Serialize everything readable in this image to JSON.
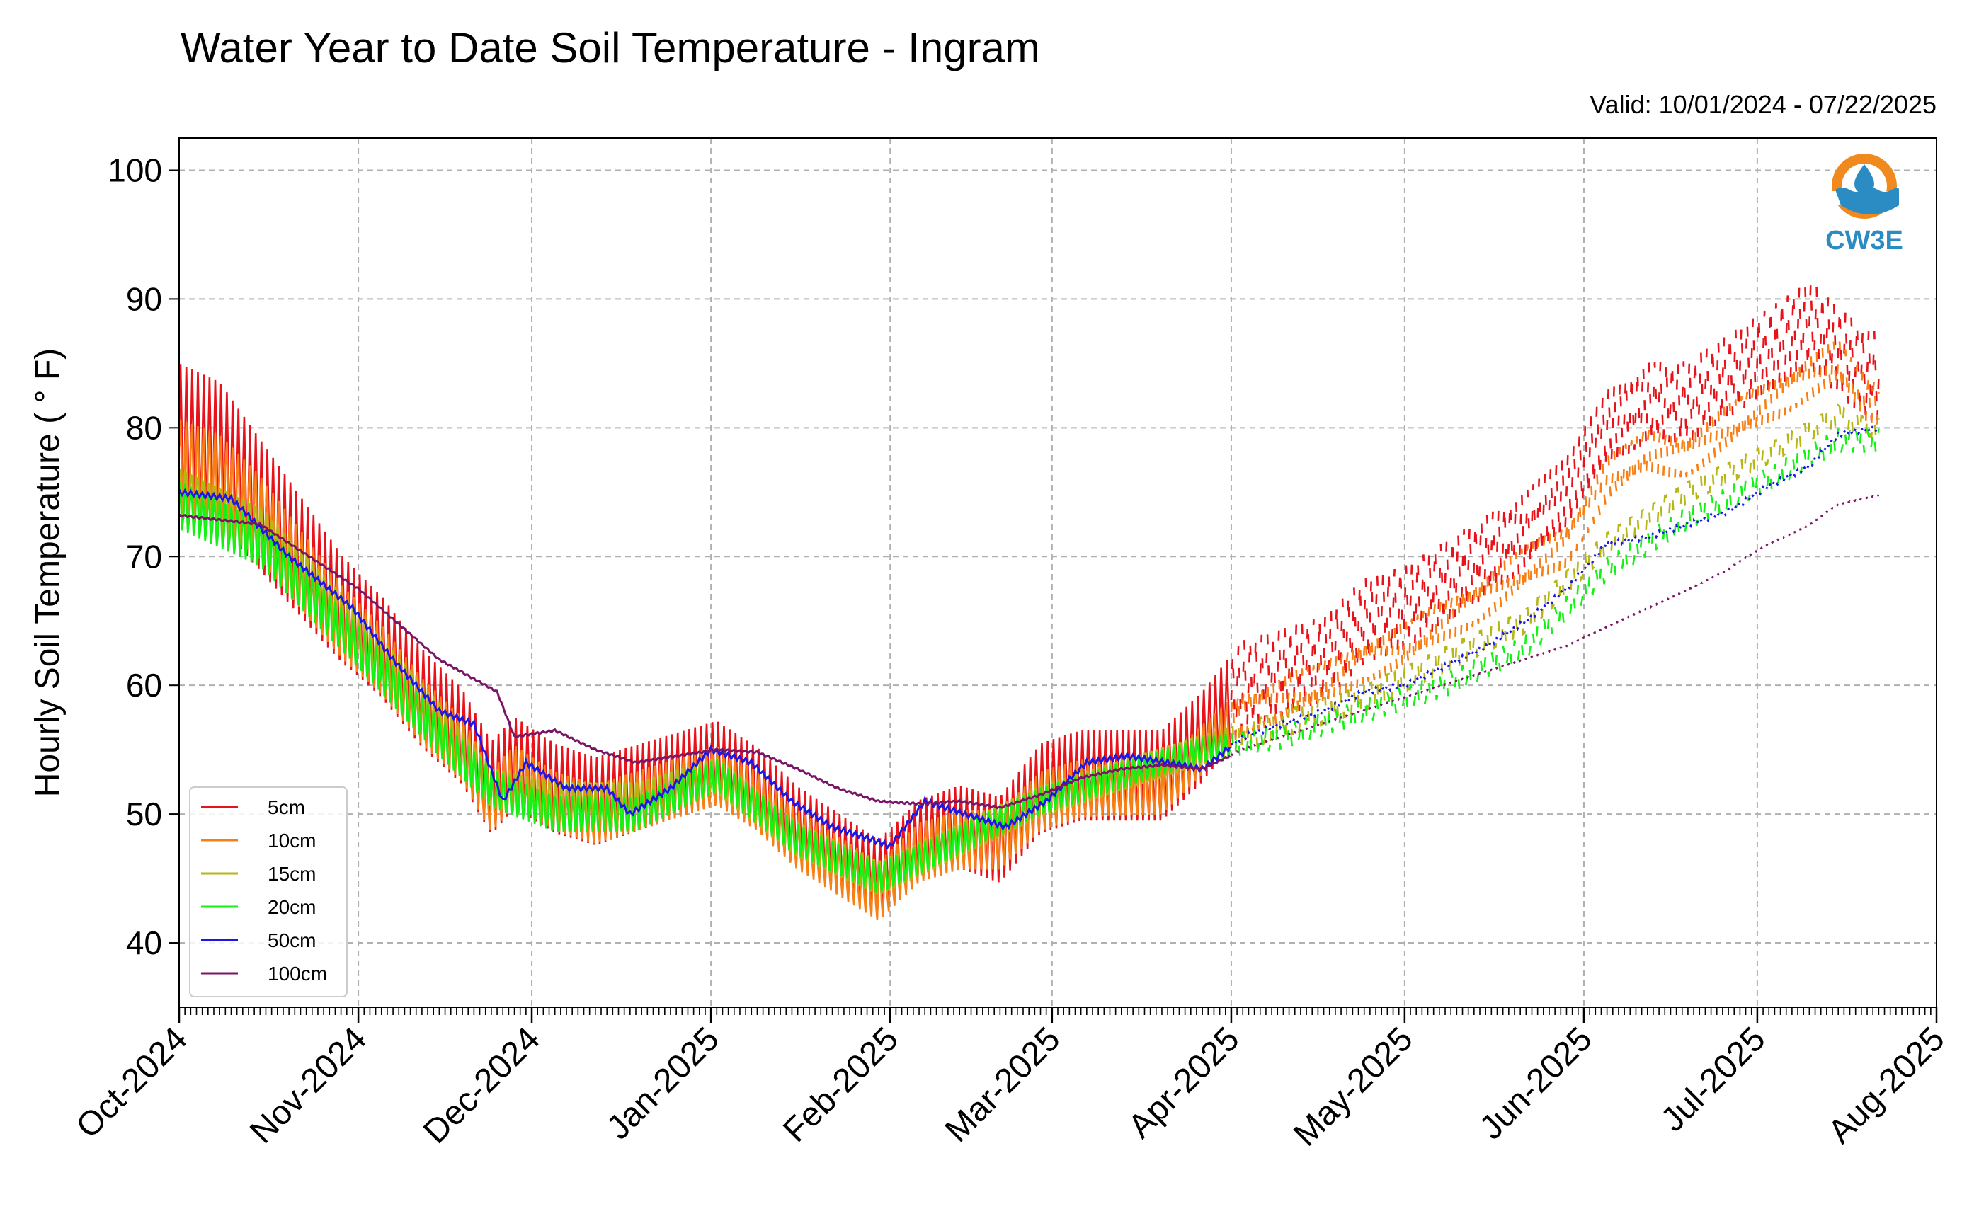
{
  "chart_data": {
    "type": "line",
    "title": "Water Year to Date Soil Temperature - Ingram",
    "subtitle": "Valid: 10/01/2024 - 07/22/2025",
    "ylabel": "Hourly Soil Temperature ( ° F)",
    "xlabel": "",
    "ylim": [
      35,
      102.5
    ],
    "yticks": [
      40,
      50,
      60,
      70,
      80,
      90,
      100
    ],
    "xlim": [
      "2024-10-01",
      "2025-08-01"
    ],
    "xticks": [
      {
        "date": "2024-10-01",
        "label": "Oct-2024"
      },
      {
        "date": "2024-11-01",
        "label": "Nov-2024"
      },
      {
        "date": "2024-12-01",
        "label": "Dec-2024"
      },
      {
        "date": "2025-01-01",
        "label": "Jan-2025"
      },
      {
        "date": "2025-02-01",
        "label": "Feb-2025"
      },
      {
        "date": "2025-03-01",
        "label": "Mar-2025"
      },
      {
        "date": "2025-04-01",
        "label": "Apr-2025"
      },
      {
        "date": "2025-05-01",
        "label": "May-2025"
      },
      {
        "date": "2025-06-01",
        "label": "Jun-2025"
      },
      {
        "date": "2025-07-01",
        "label": "Jul-2025"
      },
      {
        "date": "2025-08-01",
        "label": "Aug-2025"
      }
    ],
    "grid": true,
    "legend_position": "lower-left",
    "logo": {
      "text": "CW3E",
      "color_ring": "#f0891e",
      "color_drop": "#2b8cc4"
    },
    "series": [
      {
        "name": "5cm",
        "color": "#e8121a",
        "style_after_apr": "dashed",
        "points": [
          [
            "2024-10-01",
            79
          ],
          [
            "2024-10-08",
            78
          ],
          [
            "2024-10-15",
            74
          ],
          [
            "2024-10-22",
            70
          ],
          [
            "2024-10-29",
            66
          ],
          [
            "2024-11-05",
            63
          ],
          [
            "2024-11-12",
            59
          ],
          [
            "2024-11-19",
            56
          ],
          [
            "2024-11-24",
            52
          ],
          [
            "2024-11-28",
            54
          ],
          [
            "2024-12-05",
            52
          ],
          [
            "2024-12-12",
            51
          ],
          [
            "2024-12-19",
            52
          ],
          [
            "2024-12-26",
            53
          ],
          [
            "2025-01-02",
            54
          ],
          [
            "2025-01-09",
            52
          ],
          [
            "2025-01-16",
            49
          ],
          [
            "2025-01-23",
            47
          ],
          [
            "2025-01-30",
            45
          ],
          [
            "2025-02-06",
            48
          ],
          [
            "2025-02-13",
            49
          ],
          [
            "2025-02-20",
            48
          ],
          [
            "2025-02-27",
            52
          ],
          [
            "2025-03-06",
            53
          ],
          [
            "2025-03-13",
            53
          ],
          [
            "2025-03-20",
            53
          ],
          [
            "2025-03-27",
            56
          ],
          [
            "2025-04-03",
            60
          ],
          [
            "2025-04-10",
            61
          ],
          [
            "2025-04-17",
            62
          ],
          [
            "2025-04-24",
            65
          ],
          [
            "2025-05-01",
            66
          ],
          [
            "2025-05-08",
            68
          ],
          [
            "2025-05-15",
            70
          ],
          [
            "2025-05-22",
            72
          ],
          [
            "2025-05-29",
            75
          ],
          [
            "2025-06-05",
            80
          ],
          [
            "2025-06-12",
            82
          ],
          [
            "2025-06-19",
            82
          ],
          [
            "2025-06-26",
            84
          ],
          [
            "2025-07-03",
            86
          ],
          [
            "2025-07-10",
            88
          ],
          [
            "2025-07-15",
            86
          ],
          [
            "2025-07-20",
            84
          ]
        ],
        "amp": [
          [
            "2024-10-01",
            12
          ],
          [
            "2024-11-01",
            8
          ],
          [
            "2024-12-01",
            7
          ],
          [
            "2025-02-01",
            6
          ],
          [
            "2025-03-01",
            7
          ],
          [
            "2025-04-01",
            7
          ],
          [
            "2025-06-01",
            6
          ],
          [
            "2025-07-22",
            7
          ]
        ]
      },
      {
        "name": "10cm",
        "color": "#f77f14",
        "style_after_apr": "dashed",
        "points": [
          [
            "2024-10-01",
            77
          ],
          [
            "2024-10-08",
            76
          ],
          [
            "2024-10-15",
            73
          ],
          [
            "2024-10-22",
            69
          ],
          [
            "2024-10-29",
            65
          ],
          [
            "2024-11-05",
            62
          ],
          [
            "2024-11-12",
            58
          ],
          [
            "2024-11-19",
            55
          ],
          [
            "2024-11-24",
            51
          ],
          [
            "2024-11-28",
            53
          ],
          [
            "2024-12-05",
            51
          ],
          [
            "2024-12-12",
            50
          ],
          [
            "2024-12-19",
            51
          ],
          [
            "2024-12-26",
            52
          ],
          [
            "2025-01-02",
            53
          ],
          [
            "2025-01-09",
            51
          ],
          [
            "2025-01-16",
            48
          ],
          [
            "2025-01-23",
            46
          ],
          [
            "2025-01-30",
            44
          ],
          [
            "2025-02-06",
            47
          ],
          [
            "2025-02-13",
            48
          ],
          [
            "2025-02-20",
            48
          ],
          [
            "2025-02-27",
            51
          ],
          [
            "2025-03-06",
            52
          ],
          [
            "2025-03-13",
            52
          ],
          [
            "2025-03-20",
            52
          ],
          [
            "2025-03-27",
            55
          ],
          [
            "2025-04-03",
            58
          ],
          [
            "2025-04-10",
            59
          ],
          [
            "2025-04-17",
            60
          ],
          [
            "2025-04-24",
            62
          ],
          [
            "2025-05-01",
            63
          ],
          [
            "2025-05-08",
            65
          ],
          [
            "2025-05-15",
            67
          ],
          [
            "2025-05-22",
            69
          ],
          [
            "2025-05-29",
            71
          ],
          [
            "2025-06-05",
            76
          ],
          [
            "2025-06-12",
            78
          ],
          [
            "2025-06-19",
            78
          ],
          [
            "2025-06-26",
            80
          ],
          [
            "2025-07-03",
            82
          ],
          [
            "2025-07-10",
            84
          ],
          [
            "2025-07-15",
            85
          ],
          [
            "2025-07-20",
            82
          ]
        ],
        "amp": [
          [
            "2024-10-01",
            8
          ],
          [
            "2024-11-01",
            6
          ],
          [
            "2024-12-01",
            5
          ],
          [
            "2025-03-01",
            5
          ],
          [
            "2025-04-01",
            4
          ],
          [
            "2025-07-22",
            4
          ]
        ]
      },
      {
        "name": "15cm",
        "color": "#b6b614",
        "style_after_apr": "dashed",
        "points": [
          [
            "2024-10-01",
            75
          ],
          [
            "2024-10-15",
            72
          ],
          [
            "2024-11-01",
            64
          ],
          [
            "2024-11-15",
            57
          ],
          [
            "2024-11-24",
            52
          ],
          [
            "2024-12-05",
            51
          ],
          [
            "2024-12-19",
            51
          ],
          [
            "2025-01-02",
            53
          ],
          [
            "2025-01-16",
            48
          ],
          [
            "2025-01-30",
            45
          ],
          [
            "2025-02-13",
            48
          ],
          [
            "2025-02-27",
            51
          ],
          [
            "2025-03-13",
            53
          ],
          [
            "2025-03-27",
            55
          ],
          [
            "2025-04-10",
            57
          ],
          [
            "2025-04-24",
            59
          ],
          [
            "2025-05-08",
            62
          ],
          [
            "2025-05-22",
            65
          ],
          [
            "2025-06-05",
            71
          ],
          [
            "2025-06-19",
            75
          ],
          [
            "2025-07-03",
            78
          ],
          [
            "2025-07-15",
            81
          ],
          [
            "2025-07-20",
            80
          ]
        ],
        "amp": [
          [
            "2024-10-01",
            5
          ],
          [
            "2024-12-01",
            4
          ],
          [
            "2025-04-01",
            3
          ],
          [
            "2025-07-22",
            2
          ]
        ]
      },
      {
        "name": "20cm",
        "color": "#13f213",
        "style_after_apr": "dashed",
        "points": [
          [
            "2024-10-01",
            74
          ],
          [
            "2024-10-15",
            71
          ],
          [
            "2024-11-01",
            63
          ],
          [
            "2024-11-15",
            56
          ],
          [
            "2024-11-24",
            52
          ],
          [
            "2024-12-05",
            50
          ],
          [
            "2024-12-19",
            50
          ],
          [
            "2025-01-02",
            53
          ],
          [
            "2025-01-16",
            48
          ],
          [
            "2025-01-30",
            45
          ],
          [
            "2025-02-13",
            48
          ],
          [
            "2025-02-27",
            51
          ],
          [
            "2025-03-13",
            53
          ],
          [
            "2025-03-27",
            55
          ],
          [
            "2025-04-10",
            56
          ],
          [
            "2025-04-24",
            58
          ],
          [
            "2025-05-08",
            60
          ],
          [
            "2025-05-22",
            63
          ],
          [
            "2025-06-05",
            69
          ],
          [
            "2025-06-19",
            73
          ],
          [
            "2025-07-03",
            76
          ],
          [
            "2025-07-15",
            79
          ],
          [
            "2025-07-20",
            79
          ]
        ],
        "amp": [
          [
            "2024-10-01",
            4
          ],
          [
            "2024-12-01",
            3
          ],
          [
            "2025-04-01",
            2
          ],
          [
            "2025-07-22",
            2
          ]
        ]
      },
      {
        "name": "50cm",
        "color": "#1c17e6",
        "style_after_apr": "dotted",
        "points": [
          [
            "2024-10-01",
            75
          ],
          [
            "2024-10-10",
            74.5
          ],
          [
            "2024-10-20",
            70
          ],
          [
            "2024-10-31",
            66
          ],
          [
            "2024-11-07",
            62
          ],
          [
            "2024-11-15",
            58
          ],
          [
            "2024-11-21",
            57
          ],
          [
            "2024-11-26",
            51
          ],
          [
            "2024-11-30",
            54
          ],
          [
            "2024-12-07",
            52
          ],
          [
            "2024-12-14",
            52
          ],
          [
            "2024-12-18",
            50
          ],
          [
            "2024-12-25",
            52
          ],
          [
            "2025-01-01",
            55
          ],
          [
            "2025-01-08",
            54
          ],
          [
            "2025-01-15",
            51
          ],
          [
            "2025-01-22",
            49
          ],
          [
            "2025-01-29",
            48
          ],
          [
            "2025-02-01",
            47.5
          ],
          [
            "2025-02-07",
            51
          ],
          [
            "2025-02-14",
            50
          ],
          [
            "2025-02-21",
            49
          ],
          [
            "2025-02-28",
            51
          ],
          [
            "2025-03-07",
            54
          ],
          [
            "2025-03-14",
            54.5
          ],
          [
            "2025-03-21",
            54
          ],
          [
            "2025-03-27",
            53.5
          ],
          [
            "2025-04-03",
            56
          ],
          [
            "2025-04-10",
            57
          ],
          [
            "2025-04-17",
            58
          ],
          [
            "2025-04-24",
            59.5
          ],
          [
            "2025-05-01",
            60
          ],
          [
            "2025-05-08",
            61.5
          ],
          [
            "2025-05-15",
            63
          ],
          [
            "2025-05-22",
            65
          ],
          [
            "2025-05-29",
            67.5
          ],
          [
            "2025-06-05",
            71
          ],
          [
            "2025-06-12",
            71.5
          ],
          [
            "2025-06-19",
            72.5
          ],
          [
            "2025-06-26",
            73.5
          ],
          [
            "2025-07-03",
            75.5
          ],
          [
            "2025-07-10",
            77
          ],
          [
            "2025-07-15",
            79.5
          ],
          [
            "2025-07-22",
            80
          ]
        ],
        "amp": [
          [
            "2024-10-01",
            0.4
          ],
          [
            "2025-07-22",
            0.4
          ]
        ]
      },
      {
        "name": "100cm",
        "color": "#7a1466",
        "style_after_apr": "dotted",
        "points": [
          [
            "2024-10-01",
            73.2
          ],
          [
            "2024-10-15",
            72.5
          ],
          [
            "2024-11-01",
            67.5
          ],
          [
            "2024-11-15",
            62
          ],
          [
            "2024-11-25",
            59.5
          ],
          [
            "2024-11-28",
            56
          ],
          [
            "2024-12-05",
            56.5
          ],
          [
            "2024-12-12",
            55
          ],
          [
            "2024-12-19",
            54
          ],
          [
            "2024-12-26",
            54.5
          ],
          [
            "2025-01-02",
            55
          ],
          [
            "2025-01-09",
            54.8
          ],
          [
            "2025-01-16",
            53.5
          ],
          [
            "2025-01-23",
            52
          ],
          [
            "2025-01-30",
            51
          ],
          [
            "2025-02-06",
            50.8
          ],
          [
            "2025-02-13",
            51
          ],
          [
            "2025-02-20",
            50.5
          ],
          [
            "2025-02-27",
            51.5
          ],
          [
            "2025-03-06",
            52.8
          ],
          [
            "2025-03-13",
            53.5
          ],
          [
            "2025-03-20",
            53.8
          ],
          [
            "2025-03-27",
            53.5
          ],
          [
            "2025-04-03",
            55
          ],
          [
            "2025-04-10",
            56
          ],
          [
            "2025-04-17",
            57
          ],
          [
            "2025-04-24",
            58
          ],
          [
            "2025-05-01",
            59
          ],
          [
            "2025-05-08",
            60
          ],
          [
            "2025-05-15",
            61
          ],
          [
            "2025-05-22",
            62
          ],
          [
            "2025-05-29",
            63
          ],
          [
            "2025-06-05",
            64.5
          ],
          [
            "2025-06-12",
            66
          ],
          [
            "2025-06-19",
            67.5
          ],
          [
            "2025-06-26",
            69
          ],
          [
            "2025-07-03",
            71
          ],
          [
            "2025-07-10",
            72.5
          ],
          [
            "2025-07-15",
            74
          ],
          [
            "2025-07-22",
            74.7
          ]
        ],
        "amp": [
          [
            "2024-10-01",
            0.15
          ],
          [
            "2025-07-22",
            0.15
          ]
        ]
      }
    ]
  }
}
